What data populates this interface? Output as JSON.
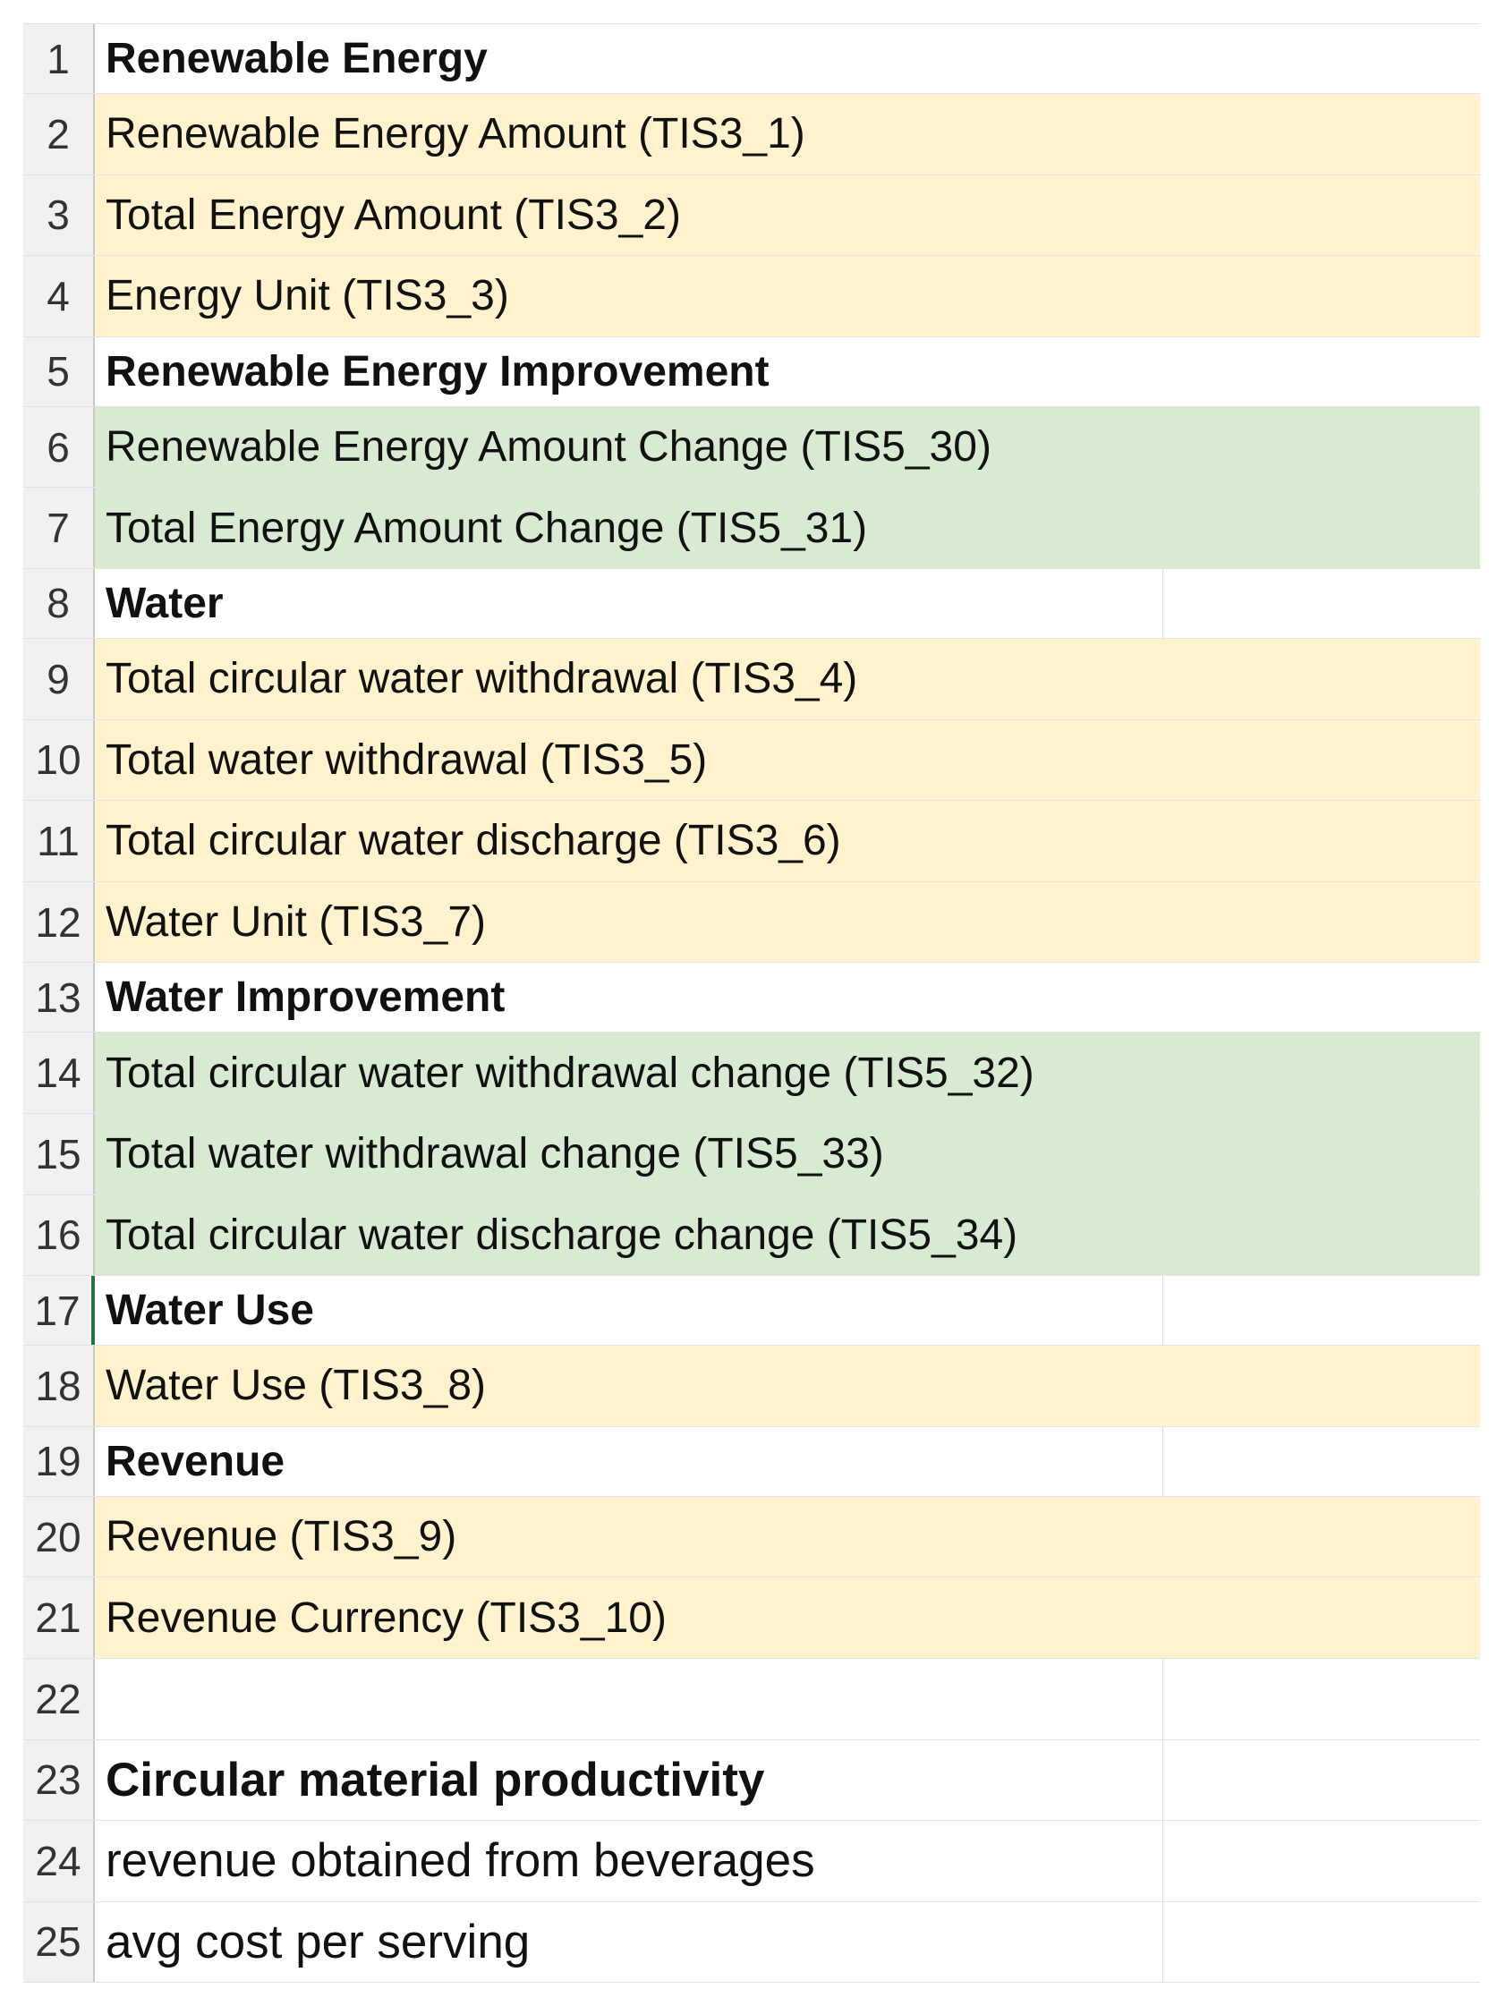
{
  "sheet": {
    "colors": {
      "highlight_yellow": "#fff2cc",
      "highlight_green": "#d9ead3",
      "selected_row_marker": "#217346"
    },
    "rows": [
      {
        "num": "1",
        "text": "Renewable Energy"
      },
      {
        "num": "2",
        "text": "Renewable Energy Amount (TIS3_1)"
      },
      {
        "num": "3",
        "text": "Total Energy Amount (TIS3_2)"
      },
      {
        "num": "4",
        "text": "Energy Unit (TIS3_3)"
      },
      {
        "num": "5",
        "text": "Renewable Energy Improvement"
      },
      {
        "num": "6",
        "text": "Renewable Energy Amount Change (TIS5_30)"
      },
      {
        "num": "7",
        "text": "Total Energy Amount Change (TIS5_31)"
      },
      {
        "num": "8",
        "text": "Water"
      },
      {
        "num": "9",
        "text": "Total circular water withdrawal (TIS3_4)"
      },
      {
        "num": "10",
        "text": "Total water withdrawal (TIS3_5)"
      },
      {
        "num": "11",
        "text": "Total circular water discharge (TIS3_6)"
      },
      {
        "num": "12",
        "text": "Water Unit (TIS3_7)"
      },
      {
        "num": "13",
        "text": "Water Improvement"
      },
      {
        "num": "14",
        "text": "Total circular water withdrawal change (TIS5_32)"
      },
      {
        "num": "15",
        "text": "Total water withdrawal change (TIS5_33)"
      },
      {
        "num": "16",
        "text": "Total circular water discharge change (TIS5_34)"
      },
      {
        "num": "17",
        "text": "Water Use"
      },
      {
        "num": "18",
        "text": "Water Use (TIS3_8)"
      },
      {
        "num": "19",
        "text": "Revenue"
      },
      {
        "num": "20",
        "text": "Revenue (TIS3_9)"
      },
      {
        "num": "21",
        "text": "Revenue Currency (TIS3_10)"
      },
      {
        "num": "22",
        "text": ""
      },
      {
        "num": "23",
        "text": "Circular material productivity"
      },
      {
        "num": "24",
        "text": "revenue obtained from beverages"
      },
      {
        "num": "25",
        "text": "avg cost per serving"
      }
    ]
  }
}
